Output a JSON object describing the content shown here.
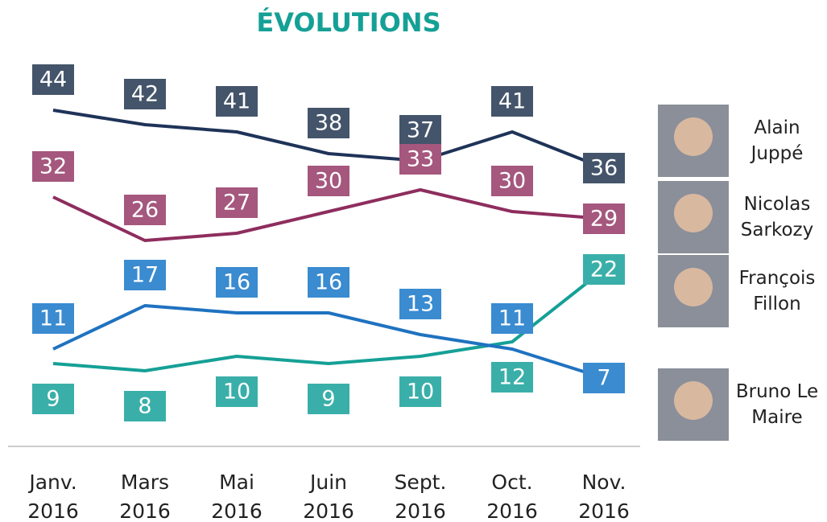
{
  "chart_data": {
    "type": "line",
    "title": "ÉVOLUTIONS",
    "categories": [
      "Janv. 2016",
      "Mars 2016",
      "Mai 2016",
      "Juin 2016",
      "Sept. 2016",
      "Oct. 2016",
      "Nov. 2016"
    ],
    "series": [
      {
        "name": "Alain Juppé",
        "color": "#1f3358",
        "label_color": "#44546a",
        "values": [
          44,
          42,
          41,
          38,
          37,
          41,
          36
        ]
      },
      {
        "name": "Nicolas Sarkozy",
        "color": "#8e2d5e",
        "label_color": "#a5577e",
        "values": [
          32,
          26,
          27,
          30,
          33,
          30,
          29
        ]
      },
      {
        "name": "François Fillon",
        "color": "#15a096",
        "label_color": "#3aafa9",
        "values": [
          9,
          8,
          10,
          9,
          10,
          12,
          22
        ]
      },
      {
        "name": "Bruno Le Maire",
        "color": "#1f72c0",
        "label_color": "#3a8bd0",
        "values": [
          11,
          17,
          16,
          16,
          13,
          11,
          7
        ]
      }
    ],
    "ylim": [
      0,
      50
    ]
  }
}
